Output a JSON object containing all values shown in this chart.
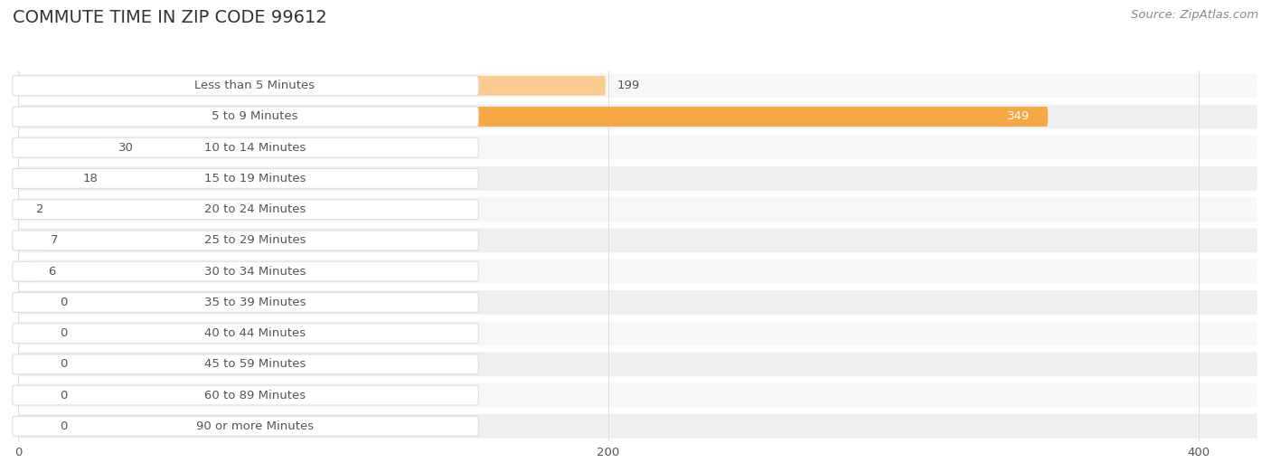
{
  "title": "COMMUTE TIME IN ZIP CODE 99612",
  "source": "Source: ZipAtlas.com",
  "categories": [
    "Less than 5 Minutes",
    "5 to 9 Minutes",
    "10 to 14 Minutes",
    "15 to 19 Minutes",
    "20 to 24 Minutes",
    "25 to 29 Minutes",
    "30 to 34 Minutes",
    "35 to 39 Minutes",
    "40 to 44 Minutes",
    "45 to 59 Minutes",
    "60 to 89 Minutes",
    "90 or more Minutes"
  ],
  "values": [
    199,
    349,
    30,
    18,
    2,
    7,
    6,
    0,
    0,
    0,
    0,
    0
  ],
  "bar_color_highlight": "#F5A843",
  "bar_color_normal": "#FBCB91",
  "background_color": "#FFFFFF",
  "row_bg_colors": [
    "#F7F7F7",
    "#EFEFEF"
  ],
  "title_fontsize": 14,
  "label_fontsize": 9.5,
  "value_fontsize": 9.5,
  "source_fontsize": 9.5,
  "xlim_max": 420,
  "xticks": [
    0,
    200,
    400
  ],
  "title_color": "#333333",
  "label_color": "#555555",
  "value_color_on_bar": "#FFFFFF",
  "value_color_outside": "#555555",
  "grid_color": "#DDDDDD",
  "source_color": "#888888",
  "label_box_color": "#FFFFFF",
  "label_box_border": "#DDDDDD"
}
